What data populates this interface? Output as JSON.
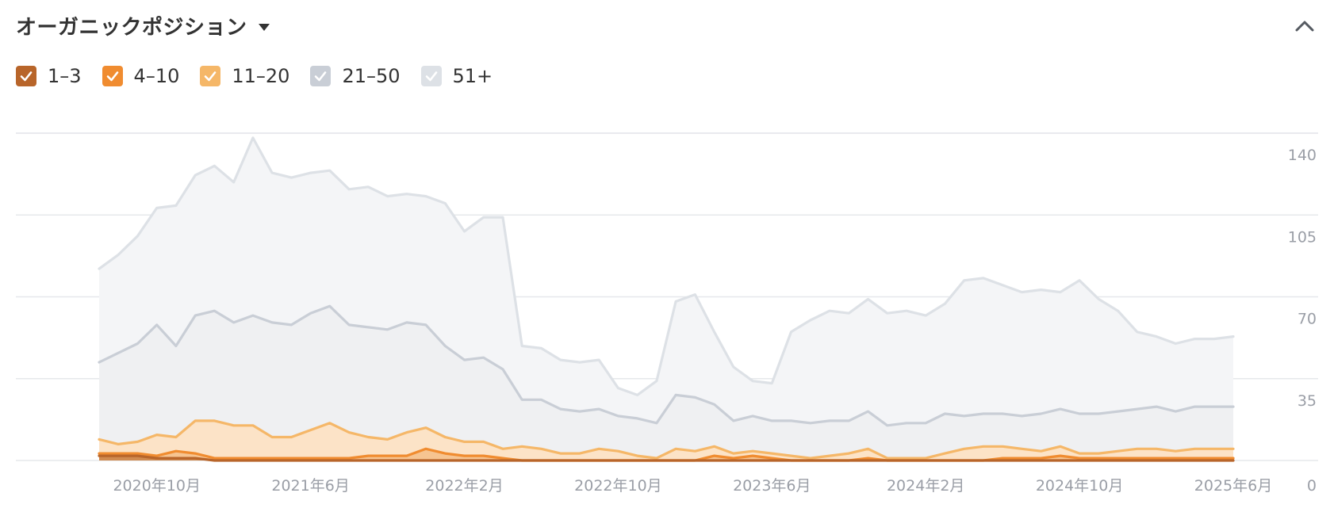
{
  "header": {
    "title": "オーガニックポジション",
    "dropdown_icon": "caret-down-icon",
    "collapse_icon": "chevron-up-icon"
  },
  "legend": [
    {
      "label": "1–3",
      "color": "#b8652a",
      "checked": true
    },
    {
      "label": "4–10",
      "color": "#f08c30",
      "checked": true
    },
    {
      "label": "11–20",
      "color": "#f5b768",
      "checked": true
    },
    {
      "label": "21–50",
      "color": "#c9ced6",
      "checked": true
    },
    {
      "label": "51+",
      "color": "#dde1e6",
      "checked": true
    }
  ],
  "chart_data": {
    "type": "area",
    "stacked": true,
    "x_start": "2020年7月",
    "x_interval": "1 month",
    "x_ticks": [
      "2020年10月",
      "2021年6月",
      "2022年2月",
      "2022年10月",
      "2023年6月",
      "2024年2月",
      "2024年10月",
      "2025年6月"
    ],
    "y_ticks": [
      "140",
      "105",
      "70",
      "35",
      "0"
    ],
    "ylim": [
      0,
      140
    ],
    "grid": true,
    "y_axis_side": "right",
    "series": [
      {
        "name": "1–3",
        "color": "#b8652a",
        "fill": "#d08a50",
        "values": [
          2,
          2,
          2,
          1,
          1,
          1,
          0,
          0,
          0,
          0,
          0,
          0,
          0,
          0,
          0,
          0,
          0,
          0,
          0,
          0,
          0,
          0,
          0,
          0,
          0,
          0,
          0,
          0,
          0,
          0,
          0,
          0,
          0,
          0,
          0,
          0,
          0,
          0,
          0,
          0,
          0,
          0,
          0,
          0,
          0,
          0,
          0,
          0,
          0,
          0,
          0,
          0,
          0,
          0,
          0,
          0,
          0,
          0,
          0,
          0
        ]
      },
      {
        "name": "4–10",
        "color": "#f08c30",
        "fill": "#f6c491",
        "values": [
          1,
          1,
          1,
          1,
          3,
          2,
          1,
          1,
          1,
          1,
          1,
          1,
          1,
          1,
          2,
          2,
          2,
          5,
          3,
          2,
          2,
          1,
          0,
          0,
          0,
          0,
          0,
          0,
          0,
          0,
          0,
          0,
          2,
          1,
          2,
          1,
          0,
          0,
          0,
          0,
          1,
          0,
          0,
          0,
          0,
          0,
          0,
          1,
          1,
          1,
          2,
          1,
          1,
          1,
          1,
          1,
          1,
          1,
          1,
          1
        ]
      },
      {
        "name": "11–20",
        "color": "#f5b768",
        "fill": "#fce3c7",
        "values": [
          6,
          4,
          5,
          9,
          6,
          14,
          16,
          14,
          14,
          9,
          9,
          12,
          15,
          11,
          8,
          7,
          10,
          9,
          7,
          6,
          6,
          4,
          6,
          5,
          3,
          3,
          5,
          4,
          2,
          1,
          5,
          4,
          4,
          2,
          2,
          2,
          2,
          1,
          2,
          3,
          4,
          1,
          1,
          1,
          3,
          5,
          6,
          5,
          4,
          3,
          4,
          2,
          2,
          3,
          4,
          4,
          3,
          4,
          4,
          4
        ]
      },
      {
        "name": "21–50",
        "color": "#c9ced6",
        "fill": "#eff0f2",
        "values": [
          33,
          39,
          42,
          47,
          39,
          45,
          47,
          44,
          47,
          49,
          48,
          50,
          50,
          46,
          47,
          47,
          47,
          44,
          39,
          35,
          36,
          34,
          20,
          21,
          19,
          18,
          17,
          15,
          16,
          15,
          23,
          23,
          18,
          14,
          15,
          14,
          15,
          15,
          15,
          14,
          16,
          14,
          15,
          15,
          17,
          14,
          14,
          14,
          14,
          16,
          16,
          17,
          17,
          17,
          17,
          18,
          17,
          18,
          18,
          18
        ]
      },
      {
        "name": "51+",
        "color": "#dde1e6",
        "fill": "#f4f5f7",
        "values": [
          40,
          42,
          46,
          50,
          60,
          60,
          62,
          60,
          76,
          64,
          63,
          60,
          58,
          58,
          60,
          57,
          55,
          55,
          61,
          55,
          60,
          65,
          23,
          22,
          21,
          21,
          21,
          12,
          10,
          18,
          40,
          44,
          31,
          23,
          15,
          16,
          38,
          44,
          47,
          46,
          48,
          48,
          48,
          46,
          47,
          58,
          58,
          55,
          53,
          53,
          50,
          57,
          49,
          43,
          33,
          30,
          29,
          29,
          29,
          30
        ]
      }
    ]
  }
}
